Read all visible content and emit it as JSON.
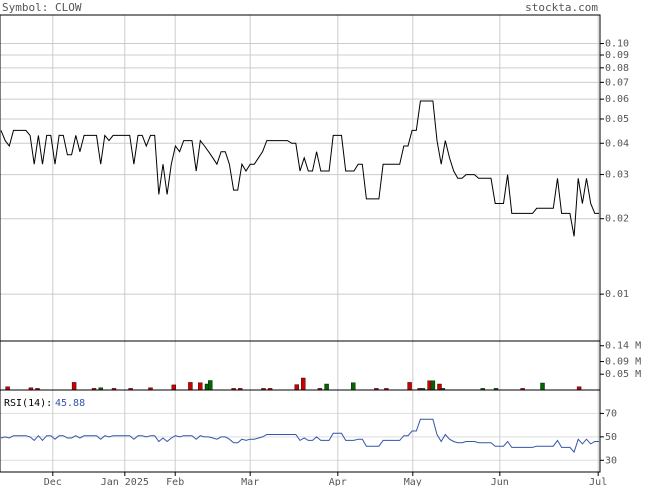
{
  "header": {
    "symbol_label": "Symbol: CLOW",
    "brand": "stockta.com"
  },
  "chart_data": [
    {
      "type": "line",
      "panel": "price",
      "scale": "log",
      "ylim": [
        0.0065,
        0.13
      ],
      "y_ticks": [
        0.1,
        0.09,
        0.08,
        0.07,
        0.06,
        0.05,
        0.04,
        0.03,
        0.02,
        0.01
      ],
      "y_tick_labels": [
        "0.10",
        "0.09",
        "0.08",
        "0.07",
        "0.06",
        "0.05",
        "0.04",
        "0.03",
        "0.02",
        "0.01"
      ],
      "series": [
        {
          "color": "#000000",
          "values": [
            0.045,
            0.041,
            0.039,
            0.045,
            0.045,
            0.045,
            0.045,
            0.043,
            0.033,
            0.043,
            0.033,
            0.043,
            0.043,
            0.033,
            0.043,
            0.043,
            0.036,
            0.036,
            0.043,
            0.037,
            0.043,
            0.043,
            0.043,
            0.043,
            0.033,
            0.043,
            0.041,
            0.043,
            0.043,
            0.043,
            0.043,
            0.043,
            0.033,
            0.043,
            0.043,
            0.039,
            0.043,
            0.043,
            0.025,
            0.033,
            0.025,
            0.033,
            0.039,
            0.037,
            0.041,
            0.041,
            0.041,
            0.031,
            0.041,
            0.039,
            0.037,
            0.035,
            0.033,
            0.037,
            0.037,
            0.033,
            0.026,
            0.026,
            0.033,
            0.031,
            0.033,
            0.033,
            0.035,
            0.037,
            0.041,
            0.041,
            0.041,
            0.041,
            0.041,
            0.041,
            0.04,
            0.04,
            0.031,
            0.035,
            0.031,
            0.031,
            0.037,
            0.031,
            0.031,
            0.031,
            0.043,
            0.043,
            0.043,
            0.031,
            0.031,
            0.031,
            0.033,
            0.033,
            0.024,
            0.024,
            0.024,
            0.024,
            0.033,
            0.033,
            0.033,
            0.033,
            0.033,
            0.039,
            0.039,
            0.045,
            0.045,
            0.059,
            0.059,
            0.059,
            0.059,
            0.041,
            0.033,
            0.041,
            0.035,
            0.031,
            0.029,
            0.029,
            0.03,
            0.03,
            0.03,
            0.029,
            0.029,
            0.029,
            0.029,
            0.023,
            0.023,
            0.023,
            0.03,
            0.021,
            0.021,
            0.021,
            0.021,
            0.021,
            0.021,
            0.022,
            0.022,
            0.022,
            0.022,
            0.022,
            0.029,
            0.021,
            0.021,
            0.021,
            0.017,
            0.029,
            0.023,
            0.029,
            0.023,
            0.021,
            0.021
          ]
        }
      ]
    },
    {
      "type": "bar",
      "panel": "volume",
      "ylim": [
        0,
        0.155
      ],
      "y_ticks": [
        0.14,
        0.09,
        0.05
      ],
      "y_tick_labels": [
        "0.14 M",
        "0.09 M",
        "0.05 M"
      ],
      "series": [
        {
          "index": [
            2,
            9,
            11,
            22,
            28,
            30,
            34,
            39,
            45,
            52,
            57,
            60,
            62,
            63,
            70,
            72,
            79,
            81,
            89,
            91,
            96,
            98,
            106,
            113,
            116,
            123,
            126,
            127,
            129,
            130,
            132,
            133,
            145,
            149,
            157,
            163,
            174
          ],
          "values": [
            0.01,
            0.007,
            0.005,
            0.024,
            0.005,
            0.007,
            0.005,
            0.005,
            0.007,
            0.016,
            0.024,
            0.023,
            0.019,
            0.03,
            0.005,
            0.005,
            0.005,
            0.005,
            0.017,
            0.038,
            0.005,
            0.019,
            0.023,
            0.005,
            0.005,
            0.024,
            0.005,
            0.005,
            0.029,
            0.029,
            0.019,
            0.005,
            0.005,
            0.005,
            0.005,
            0.022,
            0.01
          ],
          "colors": [
            "#cc0000",
            "#cc0000",
            "#cc0000",
            "#cc0000",
            "#cc0000",
            "#006600",
            "#cc0000",
            "#cc0000",
            "#cc0000",
            "#cc0000",
            "#cc0000",
            "#cc0000",
            "#006600",
            "#006600",
            "#cc0000",
            "#cc0000",
            "#cc0000",
            "#cc0000",
            "#cc0000",
            "#cc0000",
            "#cc0000",
            "#006600",
            "#006600",
            "#cc0000",
            "#cc0000",
            "#cc0000",
            "#cc0000",
            "#006600",
            "#cc0000",
            "#006600",
            "#cc0000",
            "#006600",
            "#006600",
            "#006600",
            "#cc0000",
            "#006600",
            "#cc0000"
          ]
        }
      ]
    },
    {
      "type": "line",
      "panel": "rsi",
      "label": "RSI(14):",
      "value_label": "45.88",
      "ylim": [
        20,
        90
      ],
      "y_ticks": [
        70,
        50,
        30
      ],
      "y_tick_labels": [
        "70",
        "50",
        "30"
      ],
      "series": [
        {
          "color": "#3355aa",
          "values": [
            49,
            50,
            49,
            51,
            51,
            51,
            51,
            50,
            47,
            51,
            47,
            51,
            51,
            48,
            51,
            51,
            49,
            49,
            51,
            49,
            51,
            51,
            51,
            51,
            48,
            51,
            50,
            51,
            51,
            51,
            51,
            51,
            48,
            51,
            51,
            50,
            51,
            51,
            46,
            49,
            46,
            49,
            51,
            50,
            51,
            51,
            51,
            48,
            51,
            50,
            50,
            49,
            48,
            50,
            50,
            48,
            45,
            45,
            48,
            47,
            48,
            48,
            49,
            50,
            52,
            52,
            52,
            52,
            52,
            52,
            52,
            52,
            47,
            49,
            47,
            47,
            50,
            47,
            47,
            47,
            53,
            53,
            53,
            47,
            47,
            47,
            48,
            48,
            42,
            42,
            42,
            42,
            47,
            47,
            47,
            47,
            47,
            51,
            51,
            55,
            55,
            65,
            65,
            65,
            65,
            52,
            46,
            52,
            48,
            46,
            45,
            45,
            46,
            46,
            46,
            45,
            45,
            45,
            45,
            42,
            42,
            42,
            46,
            41,
            41,
            41,
            41,
            41,
            41,
            42,
            42,
            42,
            42,
            42,
            47,
            41,
            41,
            41,
            37,
            48,
            44,
            48,
            44,
            46,
            46
          ]
        }
      ]
    }
  ],
  "x_axis": {
    "labels": [
      "Dec",
      "Jan 2025",
      "Feb",
      "Mar",
      "Apr",
      "May",
      "Jun",
      "Jul"
    ],
    "positions": [
      0.088,
      0.208,
      0.292,
      0.417,
      0.563,
      0.688,
      0.833,
      0.997
    ]
  }
}
